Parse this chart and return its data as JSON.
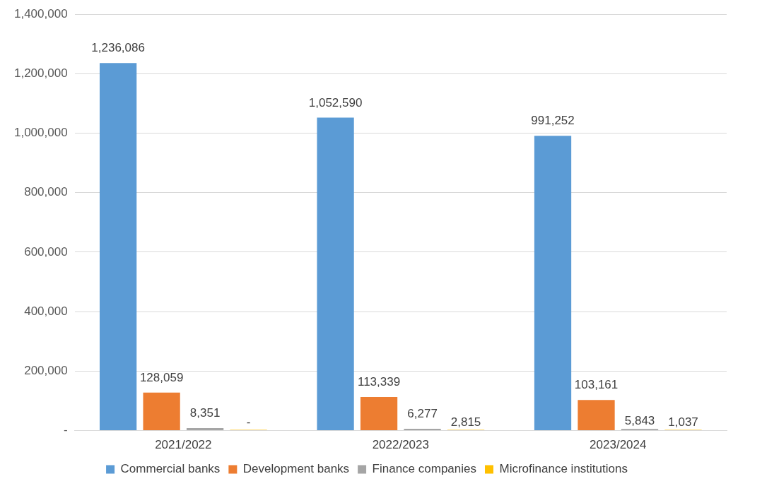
{
  "chart_data": {
    "type": "bar",
    "categories": [
      "2021/2022",
      "2022/2023",
      "2023/2024"
    ],
    "series": [
      {
        "name": "Commercial banks",
        "color": "#5b9bd5",
        "values": [
          1236086,
          1052590,
          991252
        ],
        "value_labels": [
          "1,236,086",
          "1,052,590",
          "991,252"
        ]
      },
      {
        "name": "Development banks",
        "color": "#ed7d31",
        "values": [
          128059,
          113339,
          103161
        ],
        "value_labels": [
          "128,059",
          "113,339",
          "103,161"
        ]
      },
      {
        "name": "Finance companies",
        "color": "#a5a5a5",
        "values": [
          8351,
          6277,
          5843
        ],
        "value_labels": [
          "8,351",
          "6,277",
          "5,843"
        ]
      },
      {
        "name": "Microfinance institutions",
        "color": "#ffc000",
        "values": [
          0,
          2815,
          1037
        ],
        "value_labels": [
          "-",
          "2,815",
          "1,037"
        ]
      }
    ],
    "ylim": [
      0,
      1400000
    ],
    "yticks": [
      {
        "value": 0,
        "label": "-"
      },
      {
        "value": 200000,
        "label": "200,000"
      },
      {
        "value": 400000,
        "label": "400,000"
      },
      {
        "value": 600000,
        "label": "600,000"
      },
      {
        "value": 800000,
        "label": "800,000"
      },
      {
        "value": 1000000,
        "label": "1,000,000"
      },
      {
        "value": 1200000,
        "label": "1,200,000"
      },
      {
        "value": 1400000,
        "label": "1,400,000"
      }
    ],
    "grid": "y",
    "legend": "bottom"
  }
}
